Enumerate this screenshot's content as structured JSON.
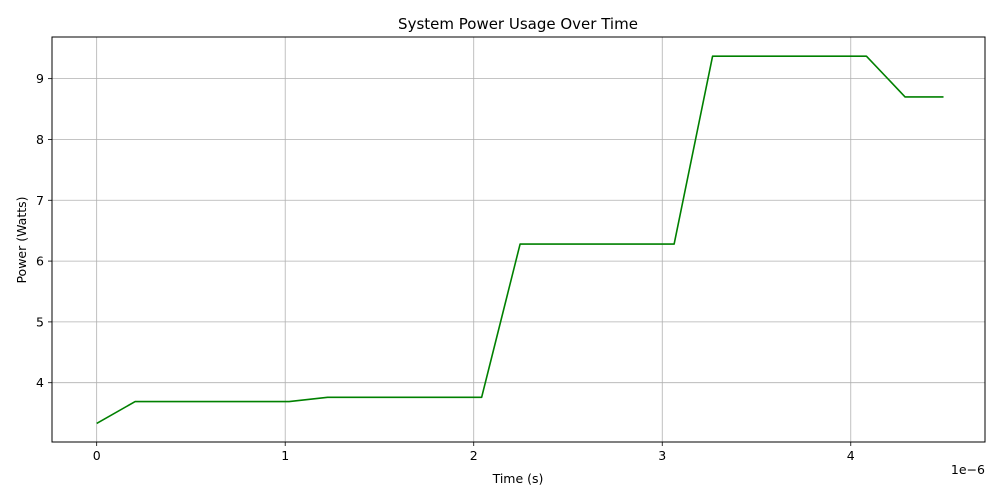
{
  "chart_data": {
    "type": "line",
    "title": "System Power Usage Over Time",
    "xlabel": "Time (s)",
    "ylabel": "Power (Watts)",
    "x_offset_label": "1e−6",
    "x_scale": 1e-06,
    "xlim": [
      -2.37e-07,
      4.712e-06
    ],
    "ylim": [
      3.025,
      9.685
    ],
    "x_ticks": [
      0,
      1e-06,
      2e-06,
      3e-06,
      4e-06
    ],
    "x_tick_labels": [
      "0",
      "1",
      "2",
      "3",
      "4"
    ],
    "y_ticks": [
      4,
      5,
      6,
      7,
      8,
      9
    ],
    "y_tick_labels": [
      "4",
      "5",
      "6",
      "7",
      "8",
      "9"
    ],
    "grid": true,
    "series": [
      {
        "color": "#008000",
        "x": [
          0,
          2.04e-07,
          1.021e-06,
          1.225e-06,
          2.042e-06,
          2.246e-06,
          3.063e-06,
          3.267e-06,
          4.083e-06,
          4.288e-06,
          4.492e-06
        ],
        "y": [
          3.33,
          3.69,
          3.69,
          3.76,
          3.76,
          6.28,
          6.28,
          9.37,
          9.37,
          8.7,
          8.7
        ]
      }
    ]
  }
}
